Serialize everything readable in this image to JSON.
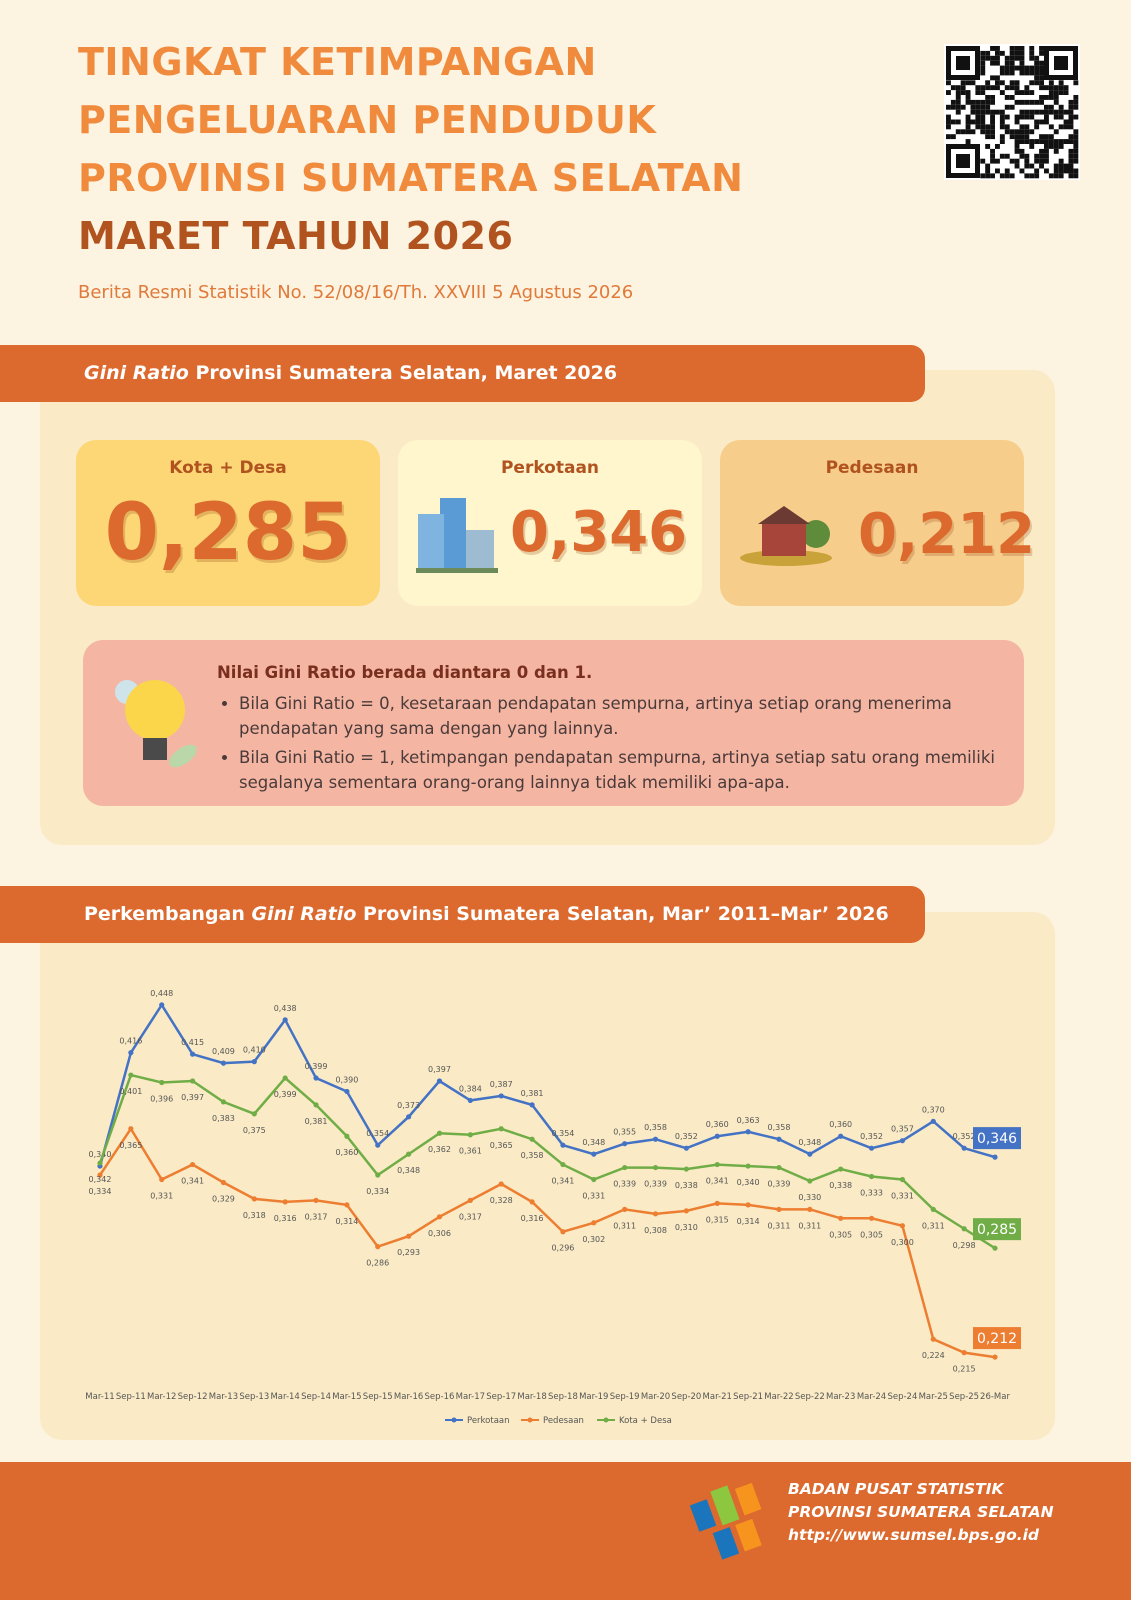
{
  "header": {
    "title_lines": [
      "TINGKAT KETIMPANGAN",
      "PENGELUARAN PENDUDUK",
      "PROVINSI SUMATERA SELATAN"
    ],
    "title_period": "MARET TAHUN 2026",
    "subtitle": "Berita Resmi Statistik No. 52/08/16/Th. XXVIII 5 Agustus 2026"
  },
  "section1": {
    "title_italic": "Gini Ratio",
    "title_rest": " Provinsi Sumatera Selatan, Maret 2026",
    "cards": [
      {
        "label": "Kota + Desa",
        "value": "0,285"
      },
      {
        "label": "Perkotaan",
        "value": "0,346"
      },
      {
        "label": "Pedesaan",
        "value": "0,212"
      }
    ],
    "info": {
      "heading": "Nilai Gini Ratio berada diantara 0 dan 1.",
      "bullets": [
        "Bila Gini Ratio = 0, kesetaraan pendapatan sempurna, artinya setiap orang menerima pendapatan yang sama dengan yang lainnya.",
        "Bila Gini Ratio = 1, ketimpangan pendapatan sempurna, artinya setiap satu orang memiliki segalanya sementara orang-orang lainnya tidak memiliki apa-apa."
      ]
    }
  },
  "section2": {
    "title_start": "Perkembangan ",
    "title_italic": "Gini Ratio",
    "title_rest": " Provinsi Sumatera Selatan, Mar’ 2011–Mar’ 2026"
  },
  "chart_data": {
    "type": "line",
    "categories": [
      "Mar-11",
      "Sep-11",
      "Mar-12",
      "Sep-12",
      "Mar-13",
      "Sep-13",
      "Mar-14",
      "Sep-14",
      "Mar-15",
      "Sep-15",
      "Mar-16",
      "Sep-16",
      "Mar-17",
      "Sep-17",
      "Mar-18",
      "Sep-18",
      "Mar-19",
      "Sep-19",
      "Mar-20",
      "Sep-20",
      "Mar-21",
      "Sep-21",
      "Mar-22",
      "Sep-22",
      "Mar-23",
      "Mar-24",
      "Sep-24",
      "Mar-25",
      "Sep-25",
      "26-Mar"
    ],
    "ylim": [
      0.2,
      0.46
    ],
    "series": [
      {
        "name": "Perkotaan",
        "color": "#4472c4",
        "values": [
          0.34,
          0.416,
          0.448,
          0.415,
          0.409,
          0.41,
          0.438,
          0.399,
          0.39,
          0.354,
          0.373,
          0.397,
          0.384,
          0.387,
          0.381,
          0.354,
          0.348,
          0.355,
          0.358,
          0.352,
          0.36,
          0.363,
          0.358,
          0.348,
          0.36,
          0.352,
          0.357,
          0.37,
          0.352,
          0.346
        ],
        "value_labels": [
          "0,340",
          "0,416",
          "0,448",
          "0,415",
          "0,409",
          "0,410",
          "0,438",
          "0,399",
          "0,390",
          "0,354",
          "0,373",
          "0,397",
          "0,384",
          "0,387",
          "0,381",
          "0,354",
          "0,348",
          "0,355",
          "0,358",
          "0,352",
          "0,360",
          "0,363",
          "0,358",
          "0,348",
          "0,360",
          "0,352",
          "0,357",
          "0,370",
          "0,352",
          "0,346"
        ]
      },
      {
        "name": "Pedesaan",
        "color": "#ed7d31",
        "values": [
          0.334,
          0.365,
          0.331,
          0.341,
          0.329,
          0.318,
          0.316,
          0.317,
          0.314,
          0.286,
          0.293,
          0.306,
          0.317,
          0.328,
          0.316,
          0.296,
          0.302,
          0.311,
          0.308,
          0.31,
          0.315,
          0.314,
          0.311,
          0.311,
          0.305,
          0.305,
          0.3,
          0.224,
          0.215,
          0.212
        ],
        "value_labels": [
          "0,334",
          "0,365",
          "0,331",
          "0,341",
          "0,329",
          "0,318",
          "0,316",
          "0,317",
          "0,314",
          "0,286",
          "0,293",
          "0,306",
          "0,317",
          "0,328",
          "0,316",
          "0,296",
          "0,302",
          "0,311",
          "0,308",
          "0,310",
          "0,315",
          "0,314",
          "0,311",
          "0,311",
          "0,305",
          "0,305",
          "0,300",
          "0,224",
          "0,215",
          "0,212"
        ]
      },
      {
        "name": "Kota + Desa",
        "color": "#70ad47",
        "values": [
          0.342,
          0.401,
          0.396,
          0.397,
          0.383,
          0.375,
          0.399,
          0.381,
          0.36,
          0.334,
          0.348,
          0.362,
          0.361,
          0.365,
          0.358,
          0.341,
          0.331,
          0.339,
          0.339,
          0.338,
          0.341,
          0.34,
          0.339,
          0.33,
          0.338,
          0.333,
          0.331,
          0.311,
          0.298,
          0.285
        ],
        "value_labels": [
          "0,342",
          "0,401",
          "0,396",
          "0,397",
          "0,383",
          "0,375",
          "0,399",
          "0,381",
          "0,360",
          "0,334",
          "0,348",
          "0,362",
          "0,361",
          "0,365",
          "0,358",
          "0,341",
          "0,331",
          "0,339",
          "0,339",
          "0,338",
          "0,341",
          "0,340",
          "0,339",
          "0,330",
          "0,338",
          "0,333",
          "0,331",
          "0,311",
          "0,298",
          "0,285"
        ]
      }
    ]
  },
  "footer": {
    "lines": [
      "BADAN PUSAT STATISTIK",
      "PROVINSI SUMATERA SELATAN",
      "http://www.sumsel.bps.go.id"
    ]
  }
}
